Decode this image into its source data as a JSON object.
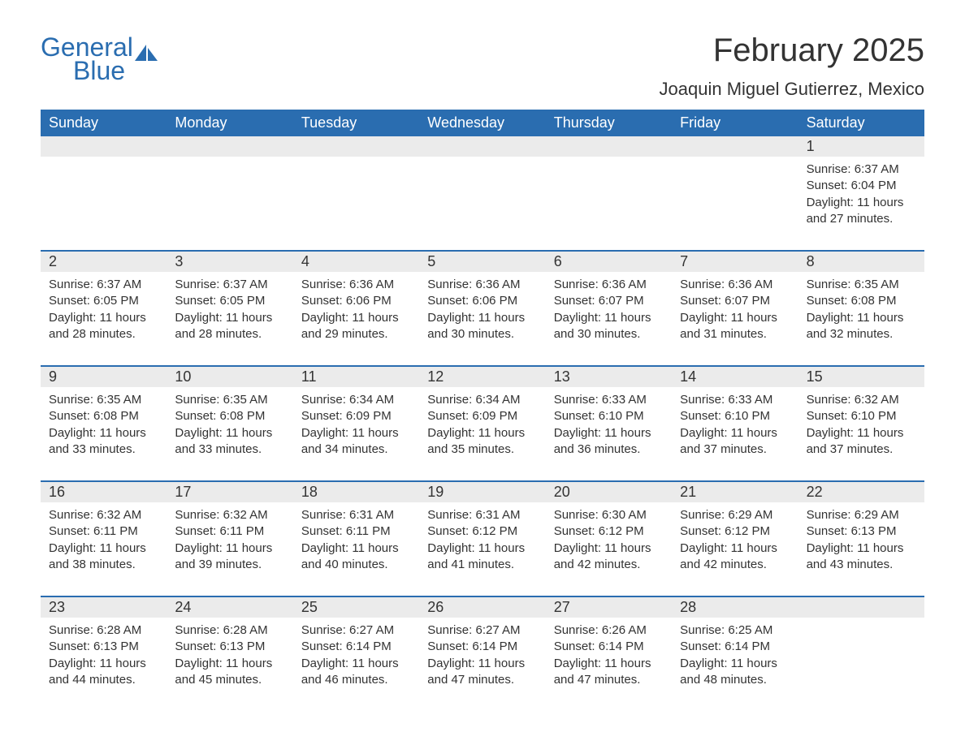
{
  "logo": {
    "word1": "General",
    "word2": "Blue",
    "accent_color": "#2a6db0"
  },
  "title": "February 2025",
  "location": "Joaquin Miguel Gutierrez, Mexico",
  "colors": {
    "header_bg": "#2a6db0",
    "header_text": "#ffffff",
    "stripe_bg": "#ebebeb",
    "text": "#333333",
    "page_bg": "#ffffff"
  },
  "typography": {
    "title_fontsize": 40,
    "location_fontsize": 22,
    "weekday_fontsize": 18,
    "daynum_fontsize": 18,
    "body_fontsize": 15
  },
  "weekdays": [
    "Sunday",
    "Monday",
    "Tuesday",
    "Wednesday",
    "Thursday",
    "Friday",
    "Saturday"
  ],
  "labels": {
    "sunrise": "Sunrise:",
    "sunset": "Sunset:",
    "daylight": "Daylight:"
  },
  "weeks": [
    [
      null,
      null,
      null,
      null,
      null,
      null,
      {
        "n": "1",
        "sunrise": "6:37 AM",
        "sunset": "6:04 PM",
        "dl1": "11 hours",
        "dl2": "and 27 minutes."
      }
    ],
    [
      {
        "n": "2",
        "sunrise": "6:37 AM",
        "sunset": "6:05 PM",
        "dl1": "11 hours",
        "dl2": "and 28 minutes."
      },
      {
        "n": "3",
        "sunrise": "6:37 AM",
        "sunset": "6:05 PM",
        "dl1": "11 hours",
        "dl2": "and 28 minutes."
      },
      {
        "n": "4",
        "sunrise": "6:36 AM",
        "sunset": "6:06 PM",
        "dl1": "11 hours",
        "dl2": "and 29 minutes."
      },
      {
        "n": "5",
        "sunrise": "6:36 AM",
        "sunset": "6:06 PM",
        "dl1": "11 hours",
        "dl2": "and 30 minutes."
      },
      {
        "n": "6",
        "sunrise": "6:36 AM",
        "sunset": "6:07 PM",
        "dl1": "11 hours",
        "dl2": "and 30 minutes."
      },
      {
        "n": "7",
        "sunrise": "6:36 AM",
        "sunset": "6:07 PM",
        "dl1": "11 hours",
        "dl2": "and 31 minutes."
      },
      {
        "n": "8",
        "sunrise": "6:35 AM",
        "sunset": "6:08 PM",
        "dl1": "11 hours",
        "dl2": "and 32 minutes."
      }
    ],
    [
      {
        "n": "9",
        "sunrise": "6:35 AM",
        "sunset": "6:08 PM",
        "dl1": "11 hours",
        "dl2": "and 33 minutes."
      },
      {
        "n": "10",
        "sunrise": "6:35 AM",
        "sunset": "6:08 PM",
        "dl1": "11 hours",
        "dl2": "and 33 minutes."
      },
      {
        "n": "11",
        "sunrise": "6:34 AM",
        "sunset": "6:09 PM",
        "dl1": "11 hours",
        "dl2": "and 34 minutes."
      },
      {
        "n": "12",
        "sunrise": "6:34 AM",
        "sunset": "6:09 PM",
        "dl1": "11 hours",
        "dl2": "and 35 minutes."
      },
      {
        "n": "13",
        "sunrise": "6:33 AM",
        "sunset": "6:10 PM",
        "dl1": "11 hours",
        "dl2": "and 36 minutes."
      },
      {
        "n": "14",
        "sunrise": "6:33 AM",
        "sunset": "6:10 PM",
        "dl1": "11 hours",
        "dl2": "and 37 minutes."
      },
      {
        "n": "15",
        "sunrise": "6:32 AM",
        "sunset": "6:10 PM",
        "dl1": "11 hours",
        "dl2": "and 37 minutes."
      }
    ],
    [
      {
        "n": "16",
        "sunrise": "6:32 AM",
        "sunset": "6:11 PM",
        "dl1": "11 hours",
        "dl2": "and 38 minutes."
      },
      {
        "n": "17",
        "sunrise": "6:32 AM",
        "sunset": "6:11 PM",
        "dl1": "11 hours",
        "dl2": "and 39 minutes."
      },
      {
        "n": "18",
        "sunrise": "6:31 AM",
        "sunset": "6:11 PM",
        "dl1": "11 hours",
        "dl2": "and 40 minutes."
      },
      {
        "n": "19",
        "sunrise": "6:31 AM",
        "sunset": "6:12 PM",
        "dl1": "11 hours",
        "dl2": "and 41 minutes."
      },
      {
        "n": "20",
        "sunrise": "6:30 AM",
        "sunset": "6:12 PM",
        "dl1": "11 hours",
        "dl2": "and 42 minutes."
      },
      {
        "n": "21",
        "sunrise": "6:29 AM",
        "sunset": "6:12 PM",
        "dl1": "11 hours",
        "dl2": "and 42 minutes."
      },
      {
        "n": "22",
        "sunrise": "6:29 AM",
        "sunset": "6:13 PM",
        "dl1": "11 hours",
        "dl2": "and 43 minutes."
      }
    ],
    [
      {
        "n": "23",
        "sunrise": "6:28 AM",
        "sunset": "6:13 PM",
        "dl1": "11 hours",
        "dl2": "and 44 minutes."
      },
      {
        "n": "24",
        "sunrise": "6:28 AM",
        "sunset": "6:13 PM",
        "dl1": "11 hours",
        "dl2": "and 45 minutes."
      },
      {
        "n": "25",
        "sunrise": "6:27 AM",
        "sunset": "6:14 PM",
        "dl1": "11 hours",
        "dl2": "and 46 minutes."
      },
      {
        "n": "26",
        "sunrise": "6:27 AM",
        "sunset": "6:14 PM",
        "dl1": "11 hours",
        "dl2": "and 47 minutes."
      },
      {
        "n": "27",
        "sunrise": "6:26 AM",
        "sunset": "6:14 PM",
        "dl1": "11 hours",
        "dl2": "and 47 minutes."
      },
      {
        "n": "28",
        "sunrise": "6:25 AM",
        "sunset": "6:14 PM",
        "dl1": "11 hours",
        "dl2": "and 48 minutes."
      },
      null
    ]
  ]
}
